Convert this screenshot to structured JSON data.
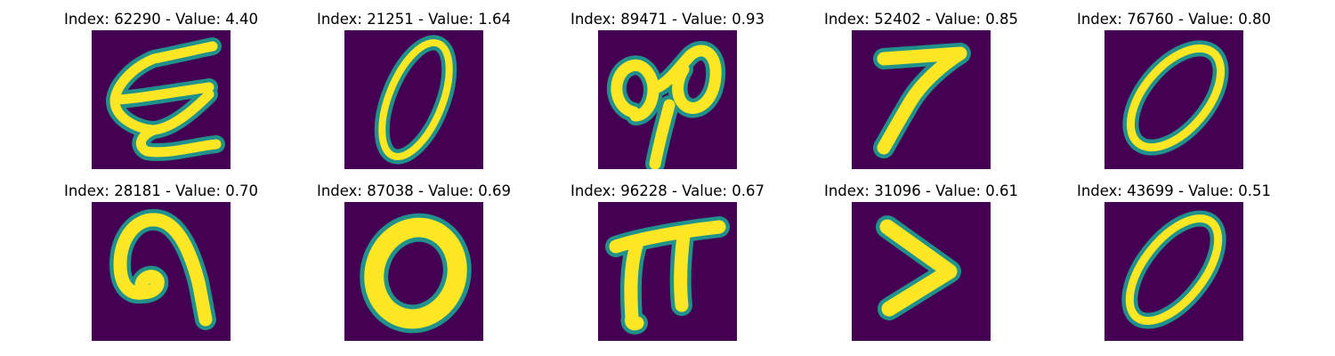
{
  "panels": [
    {
      "index": "62290",
      "value": "4.40",
      "title": "Index: 62290 - Value: 4.40",
      "glyph": "epsilon-like-digit"
    },
    {
      "index": "21251",
      "value": "1.64",
      "title": "Index: 21251 - Value: 1.64",
      "glyph": "zero-slanted"
    },
    {
      "index": "89471",
      "value": "0.93",
      "title": "Index: 89471 - Value: 0.93",
      "glyph": "double-loop"
    },
    {
      "index": "52402",
      "value": "0.85",
      "title": "Index: 52402 - Value: 0.85",
      "glyph": "seven"
    },
    {
      "index": "76760",
      "value": "0.80",
      "title": "Index: 76760 - Value: 0.80",
      "glyph": "zero-slanted"
    },
    {
      "index": "28181",
      "value": "0.70",
      "title": "Index: 28181 - Value: 0.70",
      "glyph": "hook"
    },
    {
      "index": "87038",
      "value": "0.69",
      "title": "Index: 87038 - Value: 0.69",
      "glyph": "zero-round"
    },
    {
      "index": "96228",
      "value": "0.67",
      "title": "Index: 96228 - Value: 0.67",
      "glyph": "pi-like"
    },
    {
      "index": "31096",
      "value": "0.61",
      "title": "Index: 31096 - Value: 0.61",
      "glyph": "greater-than"
    },
    {
      "index": "43699",
      "value": "0.51",
      "title": "Index: 43699 - Value: 0.51",
      "glyph": "zero-slanted"
    }
  ],
  "colors": {
    "background": "#440154",
    "edge": "#21918c",
    "stroke": "#fde725"
  }
}
